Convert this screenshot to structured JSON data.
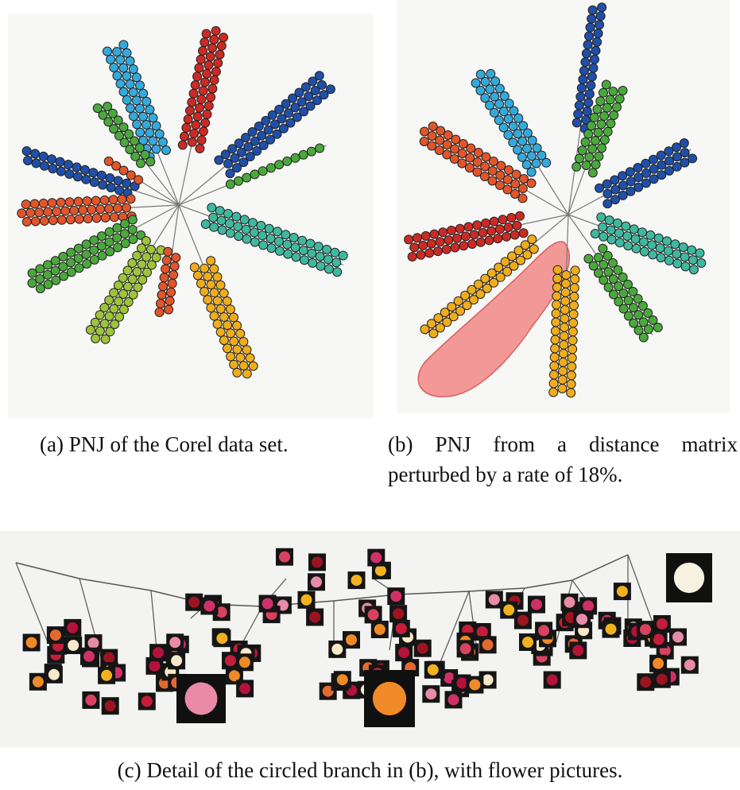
{
  "captions": {
    "a": "(a) PNJ of the Corel data set.",
    "b_line1": "(b) PNJ from a distance matrix",
    "b_line2": "perturbed by a rate of 18%.",
    "c": "(c) Detail of the circled branch in (b), with flower pictures."
  },
  "colors": {
    "dark_blue": "#1f4fa8",
    "sky_blue": "#34a9dc",
    "red": "#cc2a24",
    "orange_red": "#e2552b",
    "green": "#4aa83c",
    "yellow_green": "#9dc43a",
    "teal": "#3fb8a0",
    "yellow": "#f0ad1b",
    "highlight": "#f08080"
  }
}
